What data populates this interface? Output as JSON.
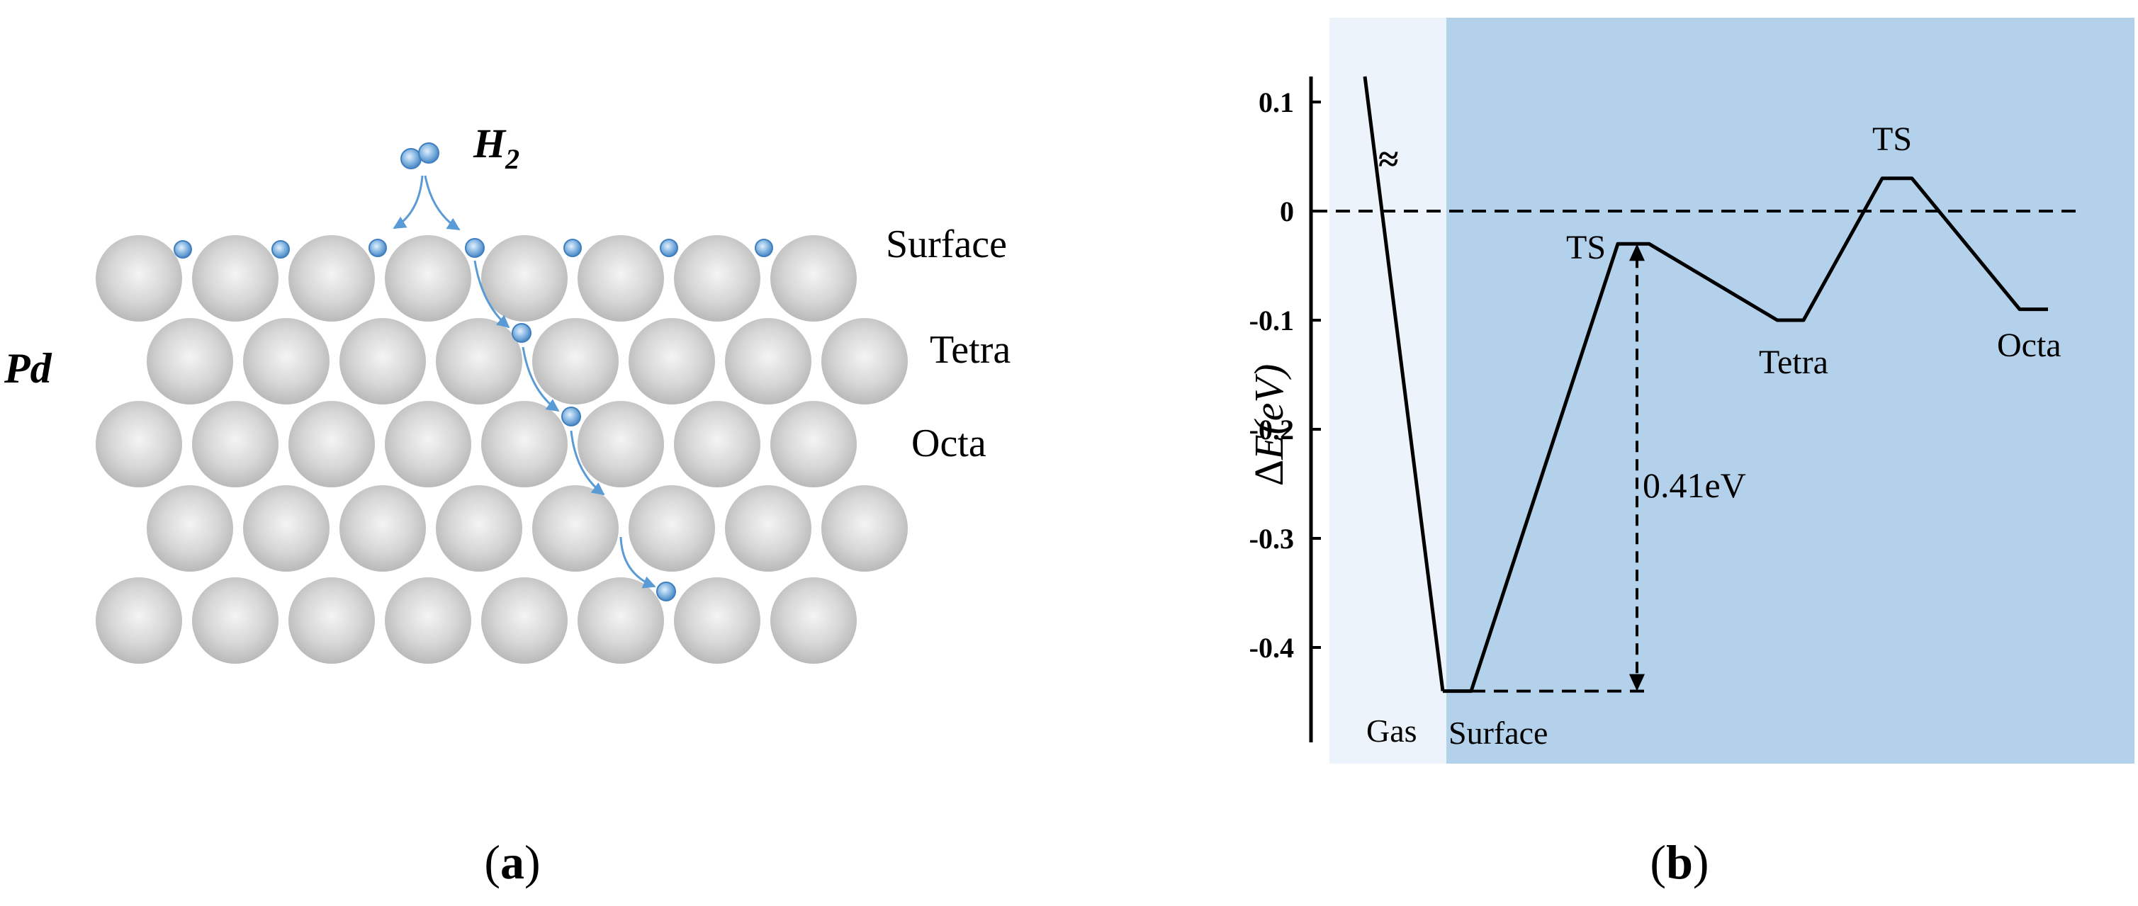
{
  "panel_a": {
    "molecule_label": {
      "main": "H",
      "subscript": "2"
    },
    "metal_label": "Pd",
    "layer_labels": [
      "Surface",
      "Tetra",
      "Octa"
    ],
    "caption": {
      "open": "(",
      "letter": "a",
      "close": ")"
    }
  },
  "panel_b": {
    "caption": {
      "open": "(",
      "letter": "b",
      "close": ")"
    },
    "ylabel": {
      "delta": "Δ",
      "symbol": "E",
      "unit": "(eV)"
    },
    "break_symbol": "≈",
    "barrier_label": "0.41eV",
    "stage_labels": {
      "gas": "Gas",
      "surface": "Surface"
    },
    "point_labels": {
      "ts1": "TS",
      "tetra": "Tetra",
      "ts2": "TS",
      "octa": "Octa"
    },
    "colors": {
      "surface_region": "#b4d1eb",
      "gas_region": "#edf3fa",
      "line": "#000000"
    }
  },
  "chart_data": {
    "type": "line",
    "ylabel": "ΔE (eV)",
    "ylim": [
      -0.5,
      0.15
    ],
    "y_ticks": [
      0.1,
      0,
      -0.1,
      -0.2,
      -0.3,
      -0.4
    ],
    "y_tick_labels": [
      "0.1",
      "0",
      "-0.1",
      "-0.2",
      "-0.3",
      "-0.4"
    ],
    "reference_line_y": 0,
    "regions": [
      "Gas",
      "Surface"
    ],
    "energy_path": [
      {
        "label": "Surface",
        "y": -0.44
      },
      {
        "label": "TS",
        "y": -0.03
      },
      {
        "label": "Tetra",
        "y": -0.1
      },
      {
        "label": "TS",
        "y": 0.03
      },
      {
        "label": "Octa",
        "y": -0.09
      }
    ],
    "barrier": {
      "from_y": -0.44,
      "to_y": -0.03,
      "value_label": "0.41eV"
    }
  }
}
